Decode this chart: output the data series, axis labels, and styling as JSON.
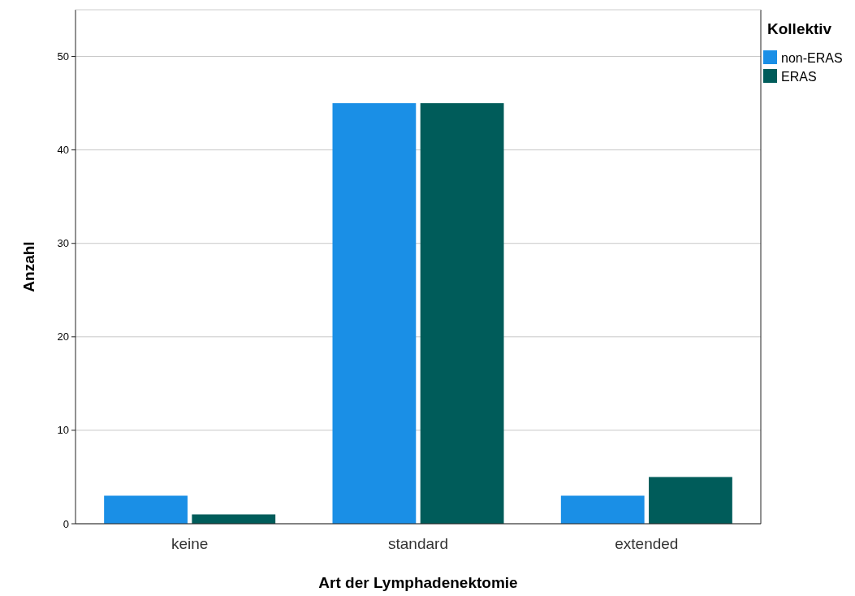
{
  "chart_data": {
    "type": "bar",
    "xlabel": "Art der Lymphadenektomie",
    "ylabel": "Anzahl",
    "legend_title": "Kollektiv",
    "categories": [
      "keine",
      "standard",
      "extended"
    ],
    "series": [
      {
        "name": "non-ERAS",
        "color": "#1a8fe6",
        "values": [
          3,
          45,
          3
        ]
      },
      {
        "name": "ERAS",
        "color": "#005c5a",
        "values": [
          1,
          45,
          5
        ]
      }
    ],
    "ylim": [
      0,
      55
    ],
    "yticks": [
      0,
      10,
      20,
      30,
      40,
      50
    ],
    "grid": "y",
    "legend": "top right"
  }
}
